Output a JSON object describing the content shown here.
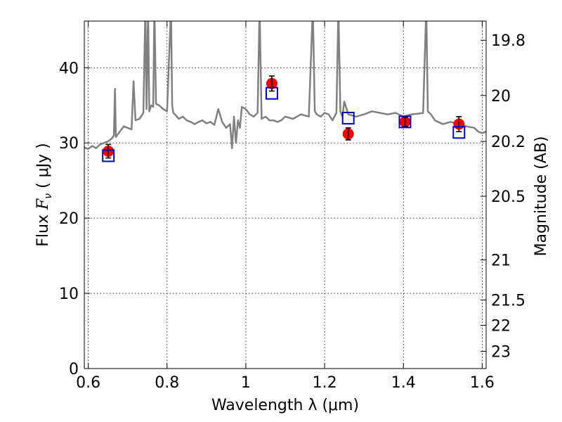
{
  "chart_data": {
    "type": "scatter",
    "xlabel": "Wavelength  λ (μm)",
    "ylabel_prefix": "Flux  ",
    "ylabel_symbol": "F",
    "ylabel_sub": "ν",
    "ylabel_unit": "  ( μJy )",
    "y2label": "Magnitude (AB)",
    "xlim": [
      0.59,
      1.61
    ],
    "ylim": [
      0,
      46.2
    ],
    "grid": true,
    "x_ticks": [
      {
        "v": 0.6,
        "label": "0.6"
      },
      {
        "v": 0.8,
        "label": "0.8"
      },
      {
        "v": 1.0,
        "label": "1"
      },
      {
        "v": 1.2,
        "label": "1.2"
      },
      {
        "v": 1.4,
        "label": "1.4"
      },
      {
        "v": 1.6,
        "label": "1.6"
      }
    ],
    "y_ticks": [
      {
        "v": 0,
        "label": "0"
      },
      {
        "v": 10,
        "label": "10"
      },
      {
        "v": 20,
        "label": "20"
      },
      {
        "v": 30,
        "label": "30"
      },
      {
        "v": 40,
        "label": "40"
      }
    ],
    "mag_ticks": [
      {
        "mag": 19.8,
        "label": "19.8"
      },
      {
        "mag": 20,
        "label": "20"
      },
      {
        "mag": 20.2,
        "label": "20.2"
      },
      {
        "mag": 20.5,
        "label": "20.5"
      },
      {
        "mag": 21,
        "label": "21"
      },
      {
        "mag": 21.5,
        "label": "21.5"
      },
      {
        "mag": 22,
        "label": "22"
      },
      {
        "mag": 23,
        "label": "23"
      }
    ],
    "series": [
      {
        "kind": "line",
        "color": "#808080",
        "x": [
          0.59,
          0.6,
          0.61,
          0.62,
          0.63,
          0.64,
          0.65,
          0.66,
          0.665,
          0.668,
          0.67,
          0.68,
          0.69,
          0.7,
          0.71,
          0.715,
          0.72,
          0.73,
          0.74,
          0.745,
          0.748,
          0.752,
          0.755,
          0.76,
          0.765,
          0.768,
          0.772,
          0.78,
          0.79,
          0.8,
          0.81,
          0.813,
          0.816,
          0.82,
          0.83,
          0.84,
          0.85,
          0.86,
          0.87,
          0.88,
          0.89,
          0.9,
          0.91,
          0.92,
          0.93,
          0.94,
          0.95,
          0.96,
          0.965,
          0.97,
          0.975,
          0.98,
          0.985,
          0.99,
          1.0,
          1.01,
          1.02,
          1.03,
          1.035,
          1.04,
          1.05,
          1.06,
          1.07,
          1.08,
          1.09,
          1.1,
          1.12,
          1.14,
          1.16,
          1.17,
          1.175,
          1.18,
          1.19,
          1.2,
          1.21,
          1.22,
          1.23,
          1.235,
          1.24,
          1.245,
          1.25,
          1.26,
          1.28,
          1.3,
          1.32,
          1.34,
          1.36,
          1.38,
          1.4,
          1.42,
          1.44,
          1.45,
          1.458,
          1.462,
          1.47,
          1.48,
          1.5,
          1.52,
          1.54,
          1.56,
          1.58,
          1.59,
          1.6,
          1.61
        ],
        "y": [
          29.4,
          29.2,
          29.6,
          29.3,
          29.8,
          30.0,
          30.2,
          30.6,
          31.0,
          37.2,
          30.8,
          31.5,
          32.2,
          32.0,
          31.8,
          38.2,
          33.0,
          33.2,
          34.0,
          48,
          34.5,
          48,
          34.2,
          35.0,
          34.8,
          48,
          35.2,
          35.0,
          34.5,
          34.2,
          48,
          35.0,
          34.0,
          33.8,
          33.2,
          33.5,
          33.0,
          32.8,
          32.5,
          32.8,
          33.0,
          32.6,
          32.8,
          32.4,
          34.5,
          32.8,
          32.0,
          32.5,
          29.3,
          33.5,
          30.0,
          33.0,
          32.0,
          34.8,
          34.5,
          33.8,
          33.5,
          34.0,
          48,
          33.2,
          33.5,
          33.0,
          33.0,
          32.8,
          33.0,
          33.5,
          33.2,
          33.8,
          33.5,
          48,
          34.2,
          33.8,
          33.5,
          34.0,
          33.8,
          33.0,
          34.0,
          48,
          34.2,
          33.5,
          35.5,
          33.8,
          33.5,
          33.8,
          34.2,
          34.0,
          33.8,
          34.0,
          33.5,
          33.8,
          33.9,
          34.0,
          48,
          34.2,
          33.8,
          33.0,
          32.5,
          32.8,
          32.5,
          32.2,
          32.0,
          31.5,
          31.3,
          31.5
        ]
      },
      {
        "kind": "points",
        "name": "",
        "color": "#ff0000",
        "x": [
          0.651,
          1.066,
          1.26,
          1.404,
          1.541
        ],
        "y": [
          28.9,
          37.9,
          31.2,
          32.8,
          32.5
        ],
        "yerr": [
          0.9,
          1.0,
          0.8,
          0.6,
          1.0
        ]
      },
      {
        "kind": "squares",
        "name": "",
        "color": "#0000cc",
        "x": [
          0.651,
          1.066,
          1.26,
          1.404,
          1.541
        ],
        "y": [
          28.3,
          36.6,
          33.3,
          32.8,
          31.4
        ]
      }
    ]
  }
}
